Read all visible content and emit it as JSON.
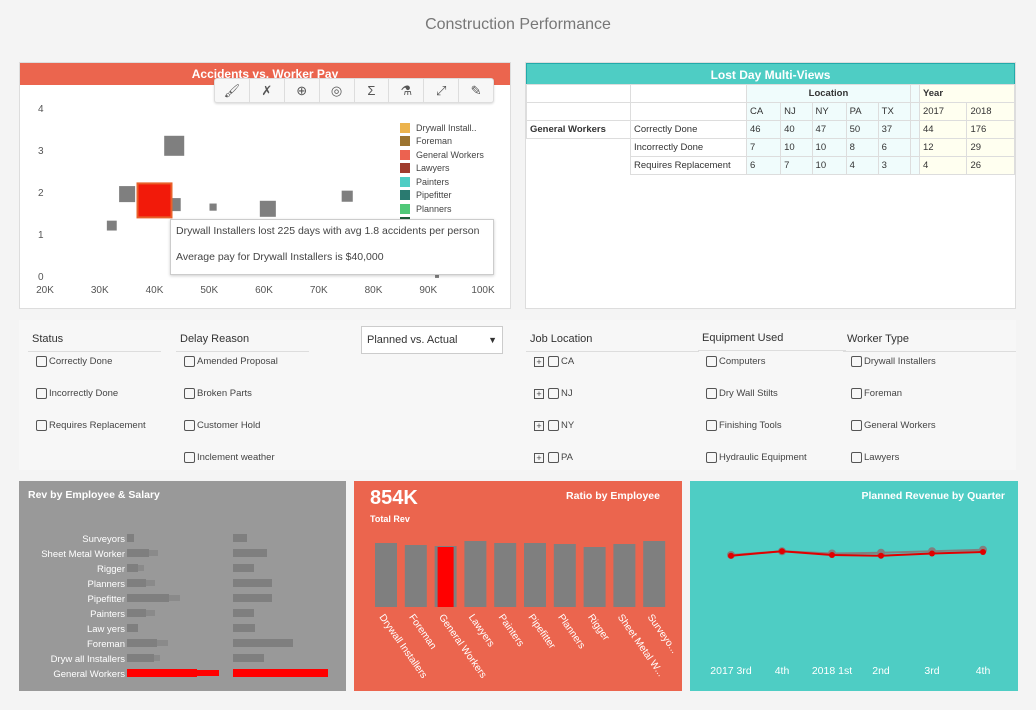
{
  "title": "Construction Performance",
  "scatter": {
    "title": "Accidents vs. Worker Pay",
    "toolbar": [
      "brush-icon",
      "clear-brush-icon",
      "zoom-in-icon",
      "hide-icon",
      "summary-icon",
      "flask-icon",
      "expand-icon",
      "edit-icon"
    ],
    "chart_data": {
      "type": "scatter",
      "xlim": [
        20000,
        100000
      ],
      "ylim": [
        0,
        4
      ],
      "x_ticks": [
        "20K",
        "30K",
        "40K",
        "50K",
        "60K",
        "70K",
        "80K",
        "90K",
        "100K"
      ],
      "y_ticks": [
        "0",
        "1",
        "2",
        "3",
        "4"
      ],
      "points": [
        {
          "x": 43600,
          "y": 3.1,
          "lost_days": 78,
          "color": "#7f7f7f"
        },
        {
          "x": 35000,
          "y": 1.95,
          "lost_days": 50,
          "color": "#7f7f7f"
        },
        {
          "x": 43600,
          "y": 1.7,
          "lost_days": 33,
          "color": "#7f7f7f"
        },
        {
          "x": 32200,
          "y": 1.2,
          "lost_days": 19,
          "color": "#7f7f7f"
        },
        {
          "x": 50700,
          "y": 1.64,
          "lost_days": 10,
          "color": "#7f7f7f"
        },
        {
          "x": 60700,
          "y": 1.6,
          "lost_days": 50,
          "color": "#7f7f7f"
        },
        {
          "x": 75200,
          "y": 1.9,
          "lost_days": 24,
          "color": "#7f7f7f"
        },
        {
          "x": 91600,
          "y": 0,
          "lost_days": 3,
          "color": "#7f7f7f"
        },
        {
          "x": 40000,
          "y": 1.8,
          "lost_days": 225,
          "color": "#f21a0a"
        }
      ],
      "legend": [
        {
          "label": "Drywall Install..",
          "color": "#ecb34d"
        },
        {
          "label": "Foreman",
          "color": "#9c7430"
        },
        {
          "label": "General Workers",
          "color": "#ec6250"
        },
        {
          "label": "Lawyers",
          "color": "#a03c2e"
        },
        {
          "label": "Painters",
          "color": "#4fcdc4"
        },
        {
          "label": "Pipefitter",
          "color": "#2a7a70"
        },
        {
          "label": "Planners",
          "color": "#50c878"
        },
        {
          "label": "",
          "color": "#1e5e3a"
        }
      ]
    },
    "tooltip": {
      "line1": "Drywall Installers lost 225 days with avg 1.8 accidents per person",
      "line2": "Average pay for Drywall Installers is $40,000"
    }
  },
  "table": {
    "title": "Lost Day Multi-Views",
    "group_location": "Location",
    "group_year": "Year",
    "columns": [
      "CA",
      "NJ",
      "NY",
      "PA",
      "TX",
      "2017",
      "2018"
    ],
    "row_group": "General Workers",
    "rows": [
      {
        "label": "Correctly Done",
        "values": [
          "46",
          "40",
          "47",
          "50",
          "37",
          "44",
          "176"
        ]
      },
      {
        "label": "Incorrectly Done",
        "values": [
          "7",
          "10",
          "10",
          "8",
          "6",
          "12",
          "29"
        ]
      },
      {
        "label": "Requires Replacement",
        "values": [
          "6",
          "7",
          "10",
          "4",
          "3",
          "4",
          "26"
        ]
      }
    ]
  },
  "filters": {
    "status": {
      "label": "Status",
      "items": [
        "Correctly Done",
        "Incorrectly Done",
        "Requires Replacement"
      ]
    },
    "delay": {
      "label": "Delay Reason",
      "items": [
        "Amended Proposal",
        "Broken Parts",
        "Customer Hold",
        "Inclement weather"
      ]
    },
    "select": "Planned vs. Actual",
    "location": {
      "label": "Job Location",
      "items": [
        "CA",
        "NJ",
        "NY",
        "PA"
      ]
    },
    "equipment": {
      "label": "Equipment Used",
      "items": [
        "Computers",
        "Dry Wall Stilts",
        "Finishing Tools",
        "Hydraulic Equipment"
      ]
    },
    "worker": {
      "label": "Worker Type",
      "items": [
        "Drywall Installers",
        "Foreman",
        "General Workers",
        "Lawyers"
      ]
    }
  },
  "rev": {
    "title": "Rev by Employee & Salary",
    "bg": "#999999",
    "chart_data": {
      "type": "bar",
      "categories": [
        "Surveyors",
        "Sheet Metal Worker",
        "Rigger",
        "Planners",
        "Pipefitter",
        "Painters",
        "Law yers",
        "Foreman",
        "Dryw all Installers",
        "General Workers"
      ],
      "series": [
        {
          "values": [
            7,
            22,
            11,
            19,
            42,
            19,
            11,
            30,
            27,
            70
          ]
        },
        {
          "values": [
            7,
            31,
            17,
            28,
            53,
            28,
            11,
            41,
            33,
            92
          ]
        },
        {
          "values": [
            14,
            34,
            21,
            39,
            39,
            21,
            22,
            60,
            31,
            95
          ]
        }
      ],
      "highlight": "General Workers"
    }
  },
  "ratio": {
    "kpi": "854K",
    "kpi_label": "Total Rev",
    "title": "Ratio by Employee",
    "bg": "#eb654e",
    "chart_data": {
      "type": "bar",
      "categories": [
        "Drywall Installers",
        "Foreman",
        "General Workers",
        "Lawyers",
        "Painters",
        "Pipefitter",
        "Planners",
        "Rigger",
        "Sheet Metal W...",
        "Surveyo..."
      ],
      "values": [
        64,
        62,
        61,
        66,
        64,
        64,
        63,
        60,
        63,
        66
      ],
      "highlight": "General Workers"
    }
  },
  "planned": {
    "title": "Planned Revenue by Quarter",
    "bg": "#4ecdc4",
    "chart_data": {
      "type": "line",
      "categories": [
        "2017 3rd",
        "4th",
        "2018 1st",
        "2nd",
        "3rd",
        "4th"
      ],
      "series": [
        {
          "values": [
            19,
            25,
            20,
            19,
            22,
            24
          ],
          "color": "#e00000"
        },
        {
          "values": [
            20,
            25,
            22,
            23,
            25,
            27
          ],
          "color": "#808080"
        }
      ]
    }
  }
}
